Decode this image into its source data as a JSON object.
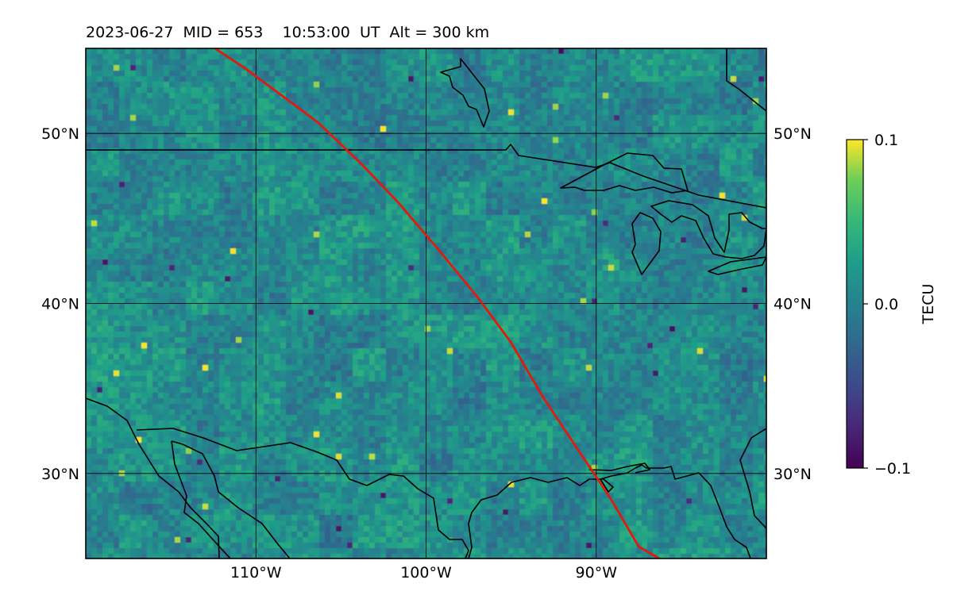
{
  "title": "2023-06-27  MID = 653    10:53:00  UT  Alt = 300 km",
  "map": {
    "lon_range": [
      -120,
      -80
    ],
    "lat_range": [
      25,
      55
    ],
    "grid_lons": [
      -110,
      -100,
      -90
    ],
    "grid_lats": [
      30,
      40,
      50
    ],
    "lon_tick_labels": [
      "110°W",
      "100°W",
      "90°W"
    ],
    "lat_tick_labels": [
      "30°N",
      "40°N",
      "50°N"
    ],
    "track": {
      "color": "#e11a0c",
      "points": [
        [
          -112.4,
          55.0
        ],
        [
          -110.6,
          53.8
        ],
        [
          -108.3,
          52.1
        ],
        [
          -106.3,
          50.6
        ],
        [
          -103.8,
          48.2
        ],
        [
          -101.6,
          45.9
        ],
        [
          -99.3,
          43.2
        ],
        [
          -97.0,
          40.4
        ],
        [
          -95.0,
          37.7
        ],
        [
          -93.2,
          34.6
        ],
        [
          -91.2,
          31.6
        ],
        [
          -89.2,
          28.6
        ],
        [
          -87.5,
          25.7
        ],
        [
          -86.3,
          25.0
        ]
      ]
    }
  },
  "colorbar": {
    "label": "TECU",
    "min": -0.1,
    "max": 0.1,
    "tick_labels": [
      "0.1",
      "0.0",
      "−0.1"
    ],
    "colormap": "viridis"
  }
}
